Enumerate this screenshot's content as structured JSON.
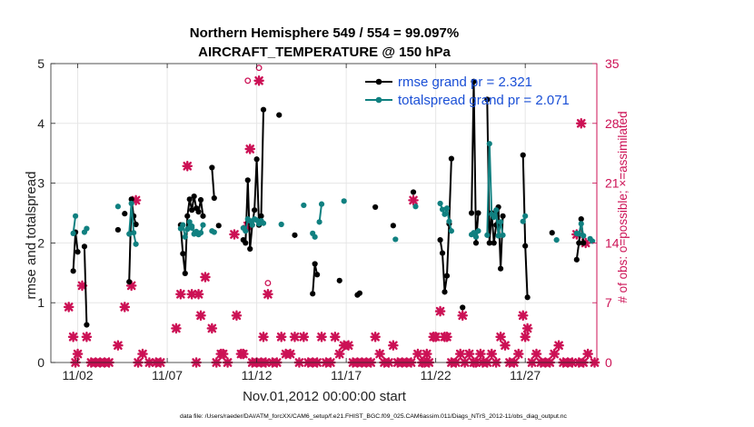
{
  "chart_data": {
    "type": "line",
    "title": "Northern Hemisphere 549 / 554 = 99.097%",
    "subtitle": "AIRCRAFT_TEMPERATURE @ 150 hPa",
    "xlabel": "Nov.01,2012 00:00:00 start",
    "ylabel": "rmse and totalspread",
    "y2label": "# of obs: o=possible; ×=assimilated",
    "footer": "data file: /Users/raeder/DAI/ATM_forcXX/CAM6_setup/f.e21.FHIST_BGC.f09_025.CAM6assim.011/Diags_NTrS_2012-11/obs_diag_output.nc",
    "xlim": [
      0.5,
      31.0
    ],
    "ylim": [
      0,
      5
    ],
    "y2lim": [
      0,
      35
    ],
    "xticks": [
      2,
      7,
      12,
      17,
      22,
      27
    ],
    "xtick_labels": [
      "11/02",
      "11/07",
      "11/12",
      "11/17",
      "11/22",
      "11/27"
    ],
    "yticks": [
      0,
      1,
      2,
      3,
      4,
      5
    ],
    "y2ticks": [
      0,
      7,
      14,
      21,
      28,
      35
    ],
    "grid": true,
    "legend_position": "top-right",
    "series": [
      {
        "name": "rmse grand pr = 2.321",
        "color": "#000000",
        "segments": [
          [
            [
              1.75,
              1.53
            ],
            [
              1.875,
              2.18
            ],
            [
              2.0,
              1.85
            ]
          ],
          [
            [
              2.375,
              1.94
            ],
            [
              2.5,
              0.63
            ]
          ],
          [
            [
              4.875,
              1.35
            ],
            [
              5.0,
              2.73
            ],
            [
              5.125,
              2.45
            ],
            [
              5.25,
              2.31
            ]
          ],
          [
            [
              7.75,
              2.3
            ],
            [
              7.875,
              1.82
            ],
            [
              8.0,
              1.49
            ],
            [
              8.125,
              2.45
            ],
            [
              8.25,
              2.73
            ],
            [
              8.375,
              2.55
            ],
            [
              8.5,
              2.78
            ],
            [
              8.625,
              2.58
            ],
            [
              8.75,
              2.52
            ],
            [
              8.875,
              2.72
            ],
            [
              9.0,
              2.45
            ]
          ],
          [
            [
              9.5,
              3.26
            ],
            [
              9.625,
              2.75
            ]
          ],
          [
            [
              11.25,
              2.05
            ],
            [
              11.375,
              2.0
            ],
            [
              11.5,
              3.05
            ],
            [
              11.625,
              1.9
            ],
            [
              11.75,
              2.3
            ],
            [
              11.875,
              2.55
            ],
            [
              12.0,
              3.4
            ],
            [
              12.125,
              2.3
            ],
            [
              12.25,
              2.45
            ],
            [
              12.375,
              4.23
            ]
          ],
          [
            [
              15.125,
              1.15
            ],
            [
              15.25,
              1.65
            ],
            [
              15.375,
              1.47
            ]
          ],
          [
            [
              17.625,
              1.13
            ],
            [
              17.75,
              1.16
            ]
          ],
          [
            [
              22.25,
              2.05
            ],
            [
              22.375,
              1.83
            ],
            [
              22.5,
              1.18
            ],
            [
              22.625,
              1.45
            ],
            [
              22.75,
              2.32
            ],
            [
              22.875,
              3.41
            ]
          ],
          [
            [
              24.0,
              2.5
            ],
            [
              24.125,
              4.7
            ],
            [
              24.25,
              2.0
            ],
            [
              24.375,
              2.5
            ]
          ],
          [
            [
              24.875,
              4.4
            ],
            [
              25.0,
              2.0
            ],
            [
              25.125,
              2.5
            ],
            [
              25.25,
              2.0
            ],
            [
              25.375,
              2.3
            ],
            [
              25.5,
              2.6
            ],
            [
              25.625,
              1.57
            ],
            [
              25.75,
              2.45
            ]
          ],
          [
            [
              26.875,
              3.47
            ],
            [
              27.0,
              1.95
            ],
            [
              27.125,
              1.09
            ]
          ],
          [
            [
              29.875,
              1.72
            ],
            [
              30.0,
              2.0
            ],
            [
              30.125,
              2.4
            ],
            [
              30.25,
              2.0
            ]
          ]
        ],
        "singles": [
          [
            4.25,
            2.22
          ],
          [
            4.625,
            2.49
          ],
          [
            9.875,
            2.29
          ],
          [
            13.25,
            4.14
          ],
          [
            14.125,
            2.13
          ],
          [
            16.625,
            1.37
          ],
          [
            18.625,
            2.6
          ],
          [
            19.625,
            2.29
          ],
          [
            20.75,
            2.85
          ],
          [
            23.5,
            0.92
          ],
          [
            28.5,
            2.17
          ]
        ]
      },
      {
        "name": "totalspread grand pr = 2.071",
        "color": "#108080",
        "segments": [
          [
            [
              1.75,
              2.16
            ],
            [
              1.875,
              2.45
            ]
          ],
          [
            [
              2.375,
              2.18
            ],
            [
              2.5,
              2.24
            ]
          ],
          [
            [
              4.875,
              2.15
            ],
            [
              5.0,
              2.66
            ],
            [
              5.125,
              2.17
            ],
            [
              5.25,
              1.98
            ]
          ],
          [
            [
              7.75,
              2.24
            ],
            [
              7.875,
              2.3
            ],
            [
              8.0,
              2.1
            ],
            [
              8.125,
              2.23
            ],
            [
              8.25,
              2.35
            ],
            [
              8.375,
              2.28
            ],
            [
              8.5,
              2.15
            ],
            [
              8.625,
              2.19
            ],
            [
              8.75,
              2.14
            ],
            [
              8.875,
              2.17
            ],
            [
              9.0,
              2.3
            ]
          ],
          [
            [
              9.5,
              2.2
            ],
            [
              9.625,
              2.18
            ]
          ],
          [
            [
              11.25,
              2.25
            ],
            [
              11.375,
              2.2
            ],
            [
              11.5,
              2.4
            ],
            [
              11.625,
              2.37
            ],
            [
              11.75,
              2.3
            ],
            [
              11.875,
              2.4
            ],
            [
              12.0,
              2.38
            ],
            [
              12.125,
              2.32
            ],
            [
              12.25,
              2.37
            ],
            [
              12.375,
              2.33
            ]
          ],
          [
            [
              15.125,
              2.16
            ],
            [
              15.25,
              2.1
            ]
          ],
          [
            [
              15.5,
              2.35
            ],
            [
              15.625,
              2.65
            ]
          ],
          [
            [
              22.25,
              2.66
            ],
            [
              22.375,
              2.56
            ],
            [
              22.5,
              2.48
            ],
            [
              22.625,
              2.58
            ],
            [
              22.75,
              2.36
            ],
            [
              22.875,
              2.2
            ]
          ],
          [
            [
              24.0,
              2.14
            ],
            [
              24.125,
              2.17
            ],
            [
              24.25,
              2.1
            ],
            [
              24.375,
              2.2
            ]
          ],
          [
            [
              24.875,
              2.13
            ],
            [
              25.0,
              3.66
            ],
            [
              25.125,
              2.48
            ],
            [
              25.25,
              2.43
            ],
            [
              25.375,
              2.55
            ],
            [
              25.5,
              2.12
            ],
            [
              25.625,
              2.35
            ],
            [
              25.75,
              2.13
            ]
          ],
          [
            [
              26.875,
              2.36
            ],
            [
              27.0,
              2.45
            ]
          ],
          [
            [
              29.875,
              2.16
            ],
            [
              30.0,
              2.15
            ],
            [
              30.125,
              2.32
            ],
            [
              30.25,
              2.12
            ]
          ],
          [
            [
              30.625,
              2.07
            ],
            [
              30.75,
              2.03
            ]
          ]
        ],
        "singles": [
          [
            4.25,
            2.61
          ],
          [
            8.375,
            2.25
          ],
          [
            13.375,
            2.31
          ],
          [
            14.625,
            2.63
          ],
          [
            16.875,
            2.7
          ],
          [
            19.75,
            2.06
          ],
          [
            20.875,
            2.61
          ],
          [
            28.75,
            2.05
          ]
        ]
      }
    ],
    "obs_color": "#cc1155",
    "obs_possible": [
      [
        11.5,
        33.0
      ],
      [
        12.125,
        34.5
      ],
      [
        12.625,
        9.3
      ]
    ],
    "obs_assimilated": [
      [
        1.5,
        6.5
      ],
      [
        1.75,
        3.0
      ],
      [
        1.875,
        0.0
      ],
      [
        2.0,
        1.0
      ],
      [
        2.25,
        9.0
      ],
      [
        2.5,
        3.0
      ],
      [
        2.75,
        0.0
      ],
      [
        3.0,
        0.0
      ],
      [
        3.25,
        0.0
      ],
      [
        3.5,
        0.0
      ],
      [
        3.75,
        0.0
      ],
      [
        4.25,
        2.0
      ],
      [
        4.625,
        6.5
      ],
      [
        5.0,
        9.0
      ],
      [
        5.25,
        19.0
      ],
      [
        5.375,
        0.0
      ],
      [
        5.625,
        1.0
      ],
      [
        6.0,
        0.0
      ],
      [
        6.375,
        0.0
      ],
      [
        6.625,
        0.0
      ],
      [
        7.5,
        4.0
      ],
      [
        7.75,
        8.0
      ],
      [
        8.125,
        23.0
      ],
      [
        8.375,
        8.0
      ],
      [
        8.75,
        8.0
      ],
      [
        8.625,
        0.0
      ],
      [
        8.875,
        5.5
      ],
      [
        9.125,
        10.0
      ],
      [
        9.5,
        4.0
      ],
      [
        9.75,
        0.0
      ],
      [
        10.0,
        1.0
      ],
      [
        10.125,
        1.0
      ],
      [
        10.375,
        0.0
      ],
      [
        10.75,
        15.0
      ],
      [
        10.875,
        5.5
      ],
      [
        11.125,
        1.0
      ],
      [
        11.25,
        1.0
      ],
      [
        11.5,
        16.0
      ],
      [
        11.625,
        25.0
      ],
      [
        11.75,
        0.0
      ],
      [
        12.0,
        0.0
      ],
      [
        12.125,
        33.0
      ],
      [
        12.25,
        0.0
      ],
      [
        12.375,
        3.0
      ],
      [
        12.5,
        0.0
      ],
      [
        12.625,
        8.0
      ],
      [
        12.875,
        0.0
      ],
      [
        13.125,
        0.0
      ],
      [
        13.375,
        3.0
      ],
      [
        13.625,
        1.0
      ],
      [
        13.875,
        1.0
      ],
      [
        14.125,
        3.0
      ],
      [
        14.375,
        0.0
      ],
      [
        14.625,
        3.0
      ],
      [
        14.875,
        0.0
      ],
      [
        15.125,
        0.0
      ],
      [
        15.375,
        0.0
      ],
      [
        15.625,
        3.0
      ],
      [
        15.875,
        0.0
      ],
      [
        16.125,
        0.0
      ],
      [
        16.375,
        3.0
      ],
      [
        16.625,
        1.0
      ],
      [
        16.875,
        2.0
      ],
      [
        17.125,
        2.0
      ],
      [
        17.375,
        0.0
      ],
      [
        17.625,
        0.0
      ],
      [
        17.875,
        0.0
      ],
      [
        18.125,
        0.0
      ],
      [
        18.375,
        0.0
      ],
      [
        18.625,
        3.0
      ],
      [
        18.875,
        1.0
      ],
      [
        19.125,
        0.0
      ],
      [
        19.375,
        0.0
      ],
      [
        19.625,
        2.0
      ],
      [
        19.875,
        0.0
      ],
      [
        20.125,
        0.0
      ],
      [
        20.375,
        0.0
      ],
      [
        20.625,
        0.0
      ],
      [
        20.75,
        19.0
      ],
      [
        21.0,
        1.0
      ],
      [
        21.25,
        0.0
      ],
      [
        21.375,
        0.0
      ],
      [
        21.5,
        1.0
      ],
      [
        21.625,
        0.0
      ],
      [
        21.875,
        3.0
      ],
      [
        22.0,
        3.0
      ],
      [
        22.25,
        6.0
      ],
      [
        22.5,
        3.0
      ],
      [
        22.625,
        3.0
      ],
      [
        22.875,
        0.0
      ],
      [
        23.125,
        0.0
      ],
      [
        23.375,
        1.0
      ],
      [
        23.5,
        5.5
      ],
      [
        23.625,
        0.0
      ],
      [
        23.875,
        1.0
      ],
      [
        24.125,
        0.0
      ],
      [
        24.25,
        0.0
      ],
      [
        24.5,
        1.0
      ],
      [
        24.625,
        0.0
      ],
      [
        24.875,
        0.0
      ],
      [
        25.125,
        1.0
      ],
      [
        25.375,
        0.0
      ],
      [
        25.625,
        3.0
      ],
      [
        25.875,
        2.0
      ],
      [
        26.125,
        0.0
      ],
      [
        26.375,
        0.0
      ],
      [
        26.625,
        1.0
      ],
      [
        26.875,
        5.5
      ],
      [
        27.0,
        3.0
      ],
      [
        27.125,
        4.0
      ],
      [
        27.375,
        0.0
      ],
      [
        27.625,
        1.0
      ],
      [
        27.875,
        0.0
      ],
      [
        28.125,
        0.0
      ],
      [
        28.375,
        0.0
      ],
      [
        28.625,
        1.0
      ],
      [
        28.875,
        2.0
      ],
      [
        29.125,
        0.0
      ],
      [
        29.375,
        0.0
      ],
      [
        29.625,
        0.0
      ],
      [
        29.875,
        15.0
      ],
      [
        30.0,
        0.0
      ],
      [
        30.125,
        28.0
      ],
      [
        30.25,
        0.0
      ],
      [
        30.375,
        14.0
      ],
      [
        30.5,
        1.0
      ],
      [
        30.875,
        0.0
      ]
    ]
  }
}
